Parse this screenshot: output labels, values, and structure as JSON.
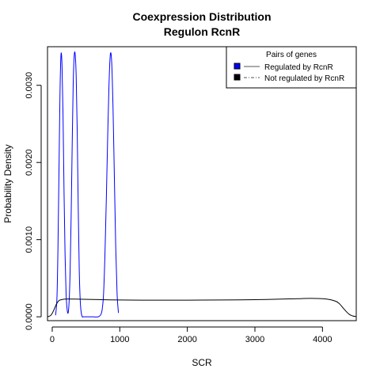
{
  "colors": {
    "regulated": "#0000ff",
    "not_regulated": "#000000",
    "axis": "#000000",
    "background": "#ffffff"
  },
  "chart_data": {
    "type": "line",
    "title": "Coexpression Distribution",
    "subtitle": "Regulon RcnR",
    "xlabel": "SCR",
    "ylabel": "Probability Density",
    "xlim": [
      -70,
      4500
    ],
    "ylim": [
      -5e-05,
      0.0035
    ],
    "x_ticks": [
      0,
      1000,
      2000,
      3000,
      4000
    ],
    "x_tick_labels": [
      "0",
      "1000",
      "2000",
      "3000",
      "4000"
    ],
    "y_ticks": [
      0.0,
      0.001,
      0.002,
      0.003
    ],
    "y_tick_labels": [
      "0.0000",
      "0.0010",
      "0.0020",
      "0.0030"
    ],
    "grid": false,
    "legend": {
      "title": "Pairs of genes",
      "placement": "top-right",
      "entries": [
        "Regulated by  RcnR",
        "Not regulated by  RcnR"
      ]
    },
    "series": [
      {
        "name": "Regulated by  RcnR",
        "color": "#0000ff",
        "x": [
          50,
          70,
          85,
          100,
          115,
          130,
          145,
          160,
          175,
          190,
          205,
          220,
          235,
          250,
          265,
          280,
          295,
          310,
          325,
          340,
          355,
          370,
          385,
          400,
          415,
          430,
          445,
          460,
          480,
          520,
          600,
          680,
          720,
          740,
          760,
          780,
          800,
          820,
          840,
          860,
          880,
          900,
          920,
          940,
          960,
          980
        ],
        "y": [
          2e-05,
          0.00025,
          0.0009,
          0.0019,
          0.0029,
          0.0034,
          0.00325,
          0.0026,
          0.0016,
          0.0008,
          0.0003,
          0.0001,
          5e-05,
          0.0002,
          0.0006,
          0.0013,
          0.0022,
          0.003,
          0.00338,
          0.0034,
          0.0031,
          0.0024,
          0.0014,
          0.0006,
          0.0002,
          5e-05,
          0.0,
          0.0,
          0.0,
          0.0,
          0.0,
          0.0,
          3e-05,
          0.0001,
          0.0003,
          0.0008,
          0.0015,
          0.0023,
          0.003,
          0.0034,
          0.0033,
          0.0027,
          0.0018,
          0.0009,
          0.0003,
          5e-05
        ]
      },
      {
        "name": "Not regulated by  RcnR",
        "color": "#000000",
        "x": [
          -70,
          -20,
          20,
          60,
          100,
          150,
          200,
          300,
          400,
          600,
          800,
          1000,
          1500,
          2000,
          2500,
          3000,
          3500,
          3800,
          4000,
          4100,
          4200,
          4250,
          4300,
          4350,
          4400,
          4450,
          4500
        ],
        "y": [
          0.0,
          2e-05,
          8e-05,
          0.00016,
          0.00021,
          0.000225,
          0.00023,
          0.00023,
          0.000228,
          0.000225,
          0.00022,
          0.000218,
          0.000215,
          0.000215,
          0.000218,
          0.000222,
          0.000232,
          0.000238,
          0.000235,
          0.000225,
          0.0002,
          0.00017,
          0.00012,
          7e-05,
          3e-05,
          1e-05,
          3e-06
        ]
      }
    ]
  }
}
